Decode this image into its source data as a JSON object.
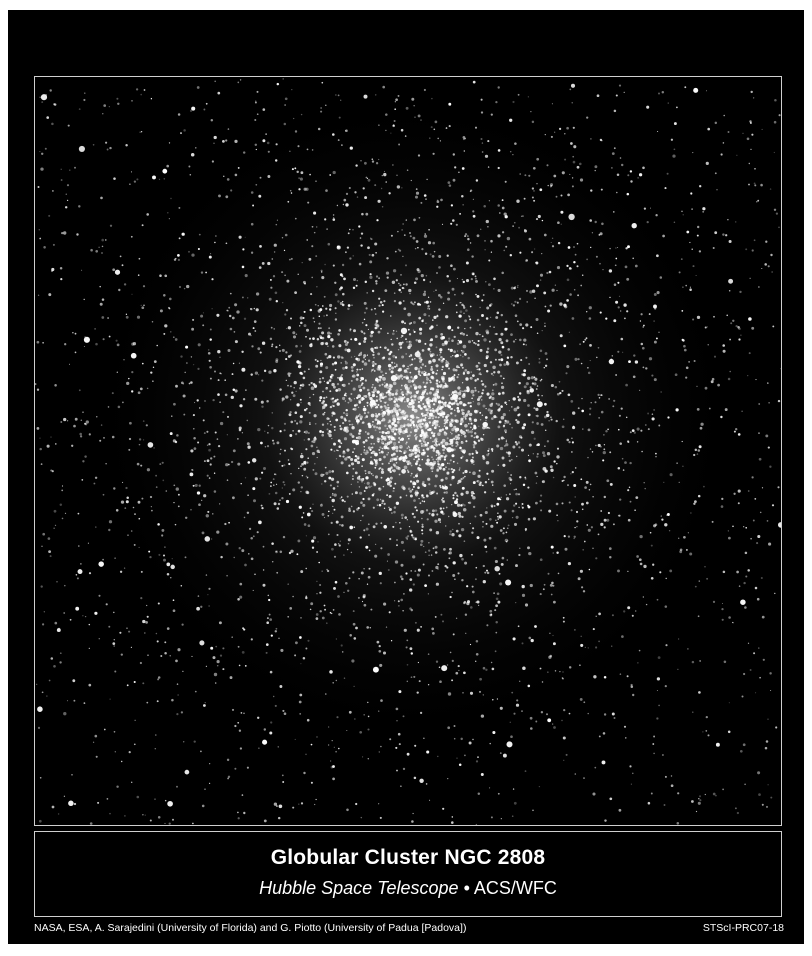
{
  "image": {
    "subject": "star-cluster-photo",
    "colors": {
      "background": "#000000",
      "frame": "#cfcfcf",
      "text": "#ffffff"
    }
  },
  "caption": {
    "title": "Globular Cluster NGC 2808",
    "subtitle_italic": "Hubble Space Telescope",
    "subtitle_separator": " • ",
    "subtitle_rest": "ACS/WFC"
  },
  "credits": {
    "text": "NASA, ESA, A. Sarajedini (University of Florida) and G. Piotto (University of Padua [Padova])",
    "release_id": "STScI-PRC07-18"
  }
}
